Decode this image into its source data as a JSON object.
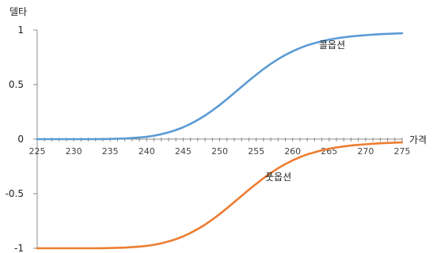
{
  "chart_data": {
    "type": "line",
    "ylabel": "델타",
    "xlabel": "가격",
    "xlim": [
      225,
      275
    ],
    "ylim": [
      -1,
      1
    ],
    "x_ticks": [
      "225",
      "230",
      "235",
      "240",
      "245",
      "250",
      "255",
      "260",
      "265",
      "270",
      "275"
    ],
    "y_ticks": [
      "1",
      "0.5",
      "0",
      "-0.5",
      "-1"
    ],
    "grid": false,
    "series": [
      {
        "name": "콜옵션",
        "color": "#5b9bd5",
        "x": [
          225,
          226,
          227,
          228,
          229,
          230,
          231,
          232,
          233,
          234,
          235,
          236,
          237,
          238,
          239,
          240,
          241,
          242,
          243,
          244,
          245,
          246,
          247,
          248,
          249,
          250,
          251,
          252,
          253,
          254,
          255,
          256,
          257,
          258,
          259,
          260,
          261,
          262,
          263,
          264,
          265,
          266,
          267,
          268,
          269,
          270,
          271,
          272,
          273,
          274,
          275
        ],
        "values": [
          0,
          0,
          0,
          0,
          0,
          0,
          0,
          0,
          0,
          0.001,
          0.002,
          0.004,
          0.006,
          0.01,
          0.015,
          0.022,
          0.032,
          0.045,
          0.062,
          0.083,
          0.109,
          0.14,
          0.176,
          0.217,
          0.263,
          0.313,
          0.367,
          0.423,
          0.48,
          0.536,
          0.59,
          0.642,
          0.69,
          0.733,
          0.772,
          0.806,
          0.835,
          0.86,
          0.88,
          0.898,
          0.912,
          0.924,
          0.933,
          0.941,
          0.948,
          0.953,
          0.958,
          0.962,
          0.965,
          0.968,
          0.97
        ]
      },
      {
        "name": "풋옵션",
        "color": "#ed7d31",
        "x": [
          225,
          226,
          227,
          228,
          229,
          230,
          231,
          232,
          233,
          234,
          235,
          236,
          237,
          238,
          239,
          240,
          241,
          242,
          243,
          244,
          245,
          246,
          247,
          248,
          249,
          250,
          251,
          252,
          253,
          254,
          255,
          256,
          257,
          258,
          259,
          260,
          261,
          262,
          263,
          264,
          265,
          266,
          267,
          268,
          269,
          270,
          271,
          272,
          273,
          274,
          275
        ],
        "values": [
          -1,
          -1,
          -1,
          -1,
          -1,
          -1,
          -1,
          -1,
          -1,
          -0.999,
          -0.998,
          -0.996,
          -0.994,
          -0.99,
          -0.985,
          -0.978,
          -0.968,
          -0.955,
          -0.938,
          -0.917,
          -0.891,
          -0.86,
          -0.824,
          -0.783,
          -0.737,
          -0.687,
          -0.633,
          -0.577,
          -0.52,
          -0.464,
          -0.41,
          -0.358,
          -0.31,
          -0.267,
          -0.228,
          -0.194,
          -0.165,
          -0.14,
          -0.12,
          -0.102,
          -0.088,
          -0.076,
          -0.067,
          -0.059,
          -0.052,
          -0.047,
          -0.042,
          -0.038,
          -0.035,
          -0.032,
          -0.03
        ]
      }
    ]
  }
}
